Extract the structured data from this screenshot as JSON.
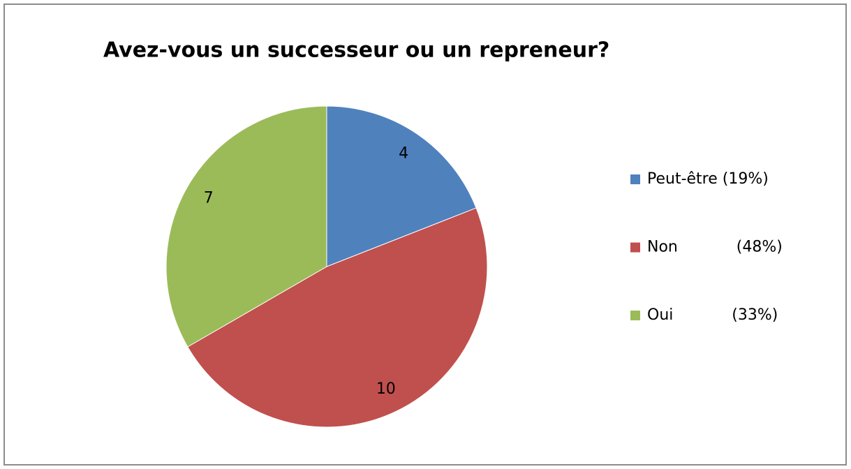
{
  "chart_data": {
    "type": "pie",
    "title": "Avez-vous un successeur ou un repreneur?",
    "categories": [
      "Peut-être (19%)",
      "Non            (48%)",
      "Oui            (33%)"
    ],
    "values": [
      4,
      10,
      7
    ],
    "colors": [
      "#4f81bd",
      "#c0504d",
      "#9bbb59"
    ],
    "legend": "right"
  }
}
